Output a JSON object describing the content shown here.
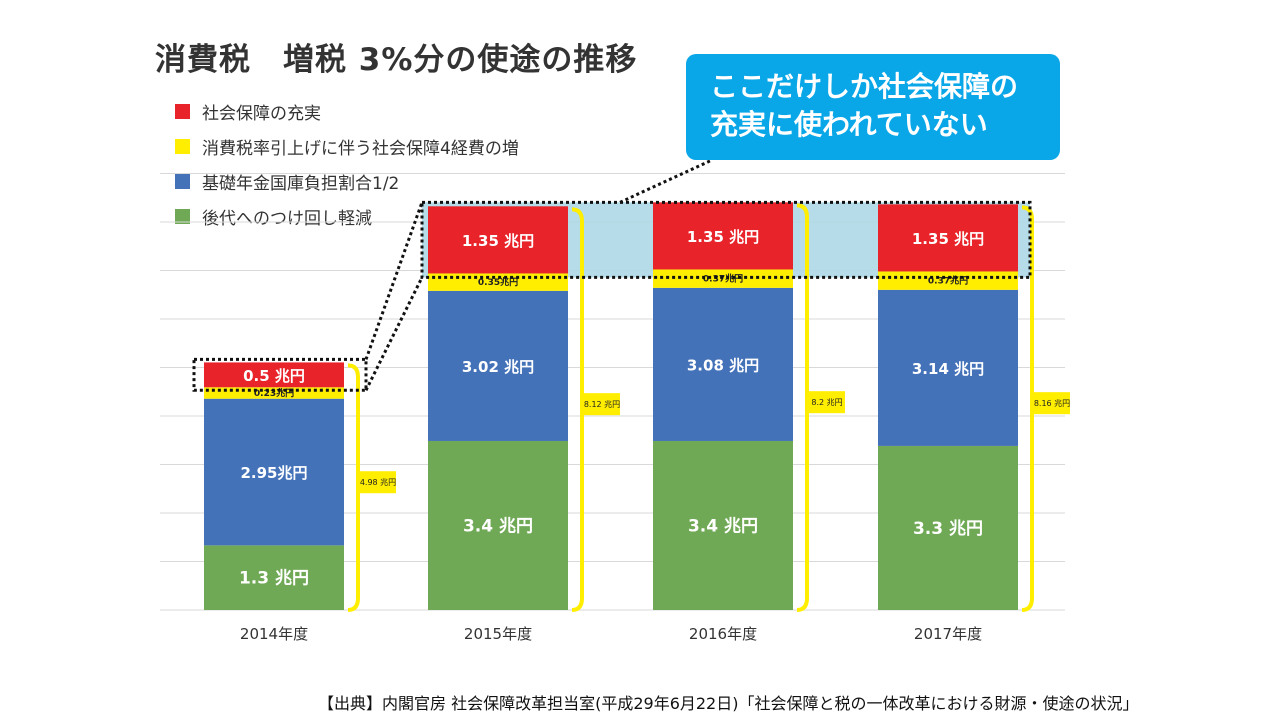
{
  "title": "消費税　増税 3%分の使途の推移",
  "callout": {
    "lines": [
      "ここだけしか社会保障の",
      "充実に使われていない"
    ]
  },
  "source": "【出典】内閣官房 社会保障改革担当室(平成29年6月22日)「社会保障と税の一体改革における財源・使途の状況」",
  "chart_data": {
    "type": "bar",
    "stacked": true,
    "categories": [
      "2014年度",
      "2015年度",
      "2016年度",
      "2017年度"
    ],
    "series": [
      {
        "name": "後代へのつけ回し軽減",
        "color": "#70a956",
        "values": [
          1.3,
          3.4,
          3.4,
          3.3
        ],
        "labels": [
          "1.3 兆円",
          "3.4 兆円",
          "3.4 兆円",
          "3.3 兆円"
        ]
      },
      {
        "name": "基礎年金国庫負担割合1/2",
        "color": "#4472b9",
        "values": [
          2.95,
          3.02,
          3.08,
          3.14
        ],
        "labels": [
          "2.95兆円",
          "3.02 兆円",
          "3.08 兆円",
          "3.14 兆円"
        ]
      },
      {
        "name": "消費税率引上げに伴う社会保障4経費の増",
        "color": "#ffee00",
        "values": [
          0.23,
          0.35,
          0.37,
          0.37
        ],
        "labels": [
          "0.23兆円",
          "0.35兆円",
          "0.37兆円",
          "0.37兆円"
        ]
      },
      {
        "name": "社会保障の充実",
        "color": "#e8232a",
        "values": [
          0.5,
          1.35,
          1.35,
          1.35
        ],
        "labels": [
          "0.5 兆円",
          "1.35 兆円",
          "1.35 兆円",
          "1.35 兆円"
        ]
      }
    ],
    "legend_order": [
      "社会保障の充実",
      "消費税率引上げに伴う社会保障4経費の増",
      "基礎年金国庫負担割合1/2",
      "後代へのつけ回し軽減"
    ],
    "totals": [
      4.98,
      8.12,
      8.2,
      8.16
    ],
    "total_labels": [
      "4.98 兆円",
      "8.12 兆円",
      "8.2 兆円",
      "8.16 兆円"
    ],
    "ylim": [
      0,
      8.75
    ],
    "gridlines": true,
    "legend_position": "top-left",
    "bracket_color": "#ffee00",
    "highlight_color": "#add8e6"
  }
}
